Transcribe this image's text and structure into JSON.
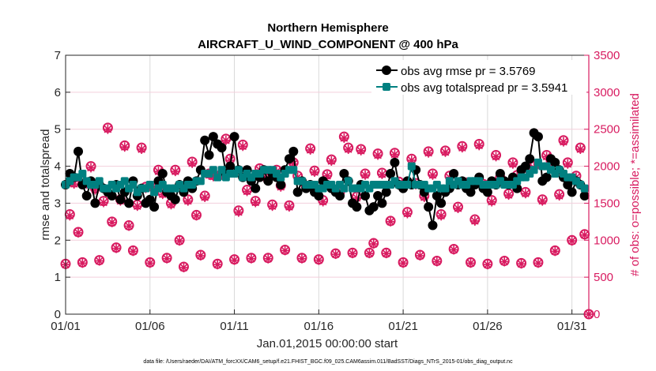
{
  "chart_data": {
    "type": "line",
    "title": [
      "Northern Hemisphere",
      "AIRCRAFT_U_WIND_COMPONENT @ 400 hPa"
    ],
    "xlabel": "Jan.01,2015 00:00:00 start",
    "ylabel_left": "rmse and totalspread",
    "ylabel_right": "# of obs: o=possible; *=assimilated",
    "x_tick_labels": [
      "01/01",
      "01/06",
      "01/11",
      "01/16",
      "01/21",
      "01/26",
      "01/31"
    ],
    "x_tick_days": [
      0,
      5,
      10,
      15,
      20,
      25,
      30
    ],
    "xlim_days": [
      0,
      31
    ],
    "ylim_left": [
      0,
      7
    ],
    "y_ticks_left": [
      "0",
      "1",
      "2",
      "3",
      "4",
      "5",
      "6",
      "7"
    ],
    "ylim_right": [
      0,
      3500
    ],
    "y_ticks_right": [
      "0",
      "500",
      "1000",
      "1500",
      "2000",
      "2500",
      "3000",
      "3500"
    ],
    "time_step_days": 0.25,
    "legend_position": "top-right",
    "colors": {
      "rmse": "#000000",
      "spread": "#008080",
      "obs": "#d81b60"
    },
    "series": [
      {
        "name": "obs avg rmse pr = 3.5769",
        "key": "rmse",
        "values": [
          3.5,
          3.8,
          3.7,
          4.4,
          3.5,
          3.2,
          3.6,
          3.0,
          3.5,
          3.4,
          3.3,
          3.2,
          3.5,
          3.1,
          3.3,
          3.0,
          3.6,
          3.2,
          3.4,
          3.0,
          3.1,
          2.9,
          3.6,
          3.8,
          3.3,
          3.2,
          3.1,
          3.5,
          3.3,
          3.6,
          3.4,
          3.6,
          3.9,
          4.7,
          4.3,
          4.8,
          4.6,
          4.5,
          3.8,
          4.0,
          4.8,
          3.9,
          3.7,
          3.9,
          3.6,
          3.4,
          3.7,
          3.9,
          3.6,
          3.8,
          3.7,
          3.5,
          3.9,
          4.2,
          4.4,
          3.3,
          3.6,
          3.4,
          3.5,
          3.3,
          3.2,
          3.6,
          3.5,
          3.4,
          3.3,
          3.2,
          3.8,
          3.6,
          3.0,
          2.9,
          3.5,
          3.2,
          2.8,
          2.9,
          3.2,
          3.0,
          3.3,
          3.8,
          4.1,
          3.5,
          3.4,
          3.6,
          3.5,
          3.9,
          3.5,
          3.3,
          2.9,
          2.4,
          3.2,
          3.0,
          3.3,
          3.4,
          3.8,
          3.5,
          3.6,
          3.4,
          3.3,
          3.5,
          3.7,
          3.4,
          3.3,
          3.6,
          3.5,
          3.8,
          3.6,
          3.5,
          3.7,
          3.4,
          3.9,
          4.0,
          4.2,
          4.9,
          4.8,
          3.6,
          3.7,
          4.2,
          4.1,
          3.9,
          3.7,
          3.5,
          3.3,
          3.6,
          3.5,
          3.2
        ]
      },
      {
        "name": "obs avg totalspread pr = 3.5941",
        "key": "spread",
        "values": [
          3.5,
          3.6,
          3.7,
          3.7,
          3.8,
          3.6,
          3.5,
          3.5,
          3.6,
          3.4,
          3.4,
          3.5,
          3.4,
          3.5,
          3.6,
          3.4,
          3.5,
          3.3,
          3.4,
          3.4,
          3.5,
          3.3,
          3.4,
          3.5,
          3.4,
          3.4,
          3.4,
          3.5,
          3.4,
          3.5,
          3.5,
          3.6,
          3.6,
          3.8,
          3.8,
          3.9,
          3.7,
          3.9,
          3.7,
          3.8,
          3.8,
          3.9,
          3.7,
          3.8,
          3.7,
          3.8,
          3.8,
          3.9,
          3.9,
          3.9,
          3.8,
          3.7,
          3.8,
          3.9,
          3.9,
          3.6,
          3.6,
          3.5,
          3.5,
          3.5,
          3.4,
          3.4,
          3.5,
          3.5,
          3.4,
          3.5,
          3.4,
          3.6,
          3.4,
          3.4,
          3.4,
          3.5,
          3.4,
          3.5,
          3.5,
          3.5,
          3.5,
          3.5,
          3.6,
          3.5,
          3.5,
          3.5,
          4.0,
          3.5,
          3.5,
          3.5,
          3.4,
          3.4,
          3.5,
          3.4,
          3.4,
          3.6,
          3.5,
          3.6,
          3.5,
          3.5,
          3.6,
          3.6,
          3.6,
          3.5,
          3.5,
          3.5,
          3.5,
          3.6,
          3.5,
          3.5,
          3.5,
          3.6,
          3.7,
          3.7,
          3.8,
          3.9,
          4.1,
          4.0,
          4.0,
          3.9,
          3.8,
          3.9,
          3.8,
          3.7,
          3.7,
          3.6,
          3.5,
          3.4
        ]
      },
      {
        "name": "obs possible",
        "key": "possible",
        "values": [
          680,
          1350,
          1780,
          1110,
          700,
          1780,
          2000,
          1700,
          730,
          1530,
          2520,
          1250,
          900,
          1550,
          2280,
          1200,
          860,
          1480,
          2250,
          1720,
          700,
          1700,
          1950,
          1640,
          760,
          1500,
          1950,
          1000,
          640,
          1550,
          2060,
          1340,
          800,
          1600,
          1900,
          1880,
          680,
          1900,
          2370,
          2100,
          740,
          1400,
          2290,
          1680,
          760,
          1530,
          1970,
          1870,
          760,
          1480,
          1950,
          1740,
          870,
          1470,
          2050,
          1870,
          760,
          1730,
          2240,
          1940,
          740,
          1540,
          1890,
          2090,
          820,
          1650,
          2400,
          2250,
          830,
          1590,
          2230,
          1900,
          830,
          960,
          2170,
          1910,
          830,
          1260,
          2180,
          1790,
          700,
          1380,
          2100,
          1770,
          800,
          1600,
          2200,
          1900,
          720,
          1350,
          2210,
          1870,
          880,
          1450,
          2270,
          1780,
          700,
          1280,
          2300,
          1760,
          680,
          1540,
          2150,
          1850,
          720,
          1630,
          2050,
          1880,
          690,
          1650,
          1950,
          2000,
          700,
          1550,
          2150,
          2080,
          860,
          1620,
          2350,
          2050,
          1000,
          1870,
          2250,
          1080,
          0
        ]
      },
      {
        "name": "obs assimilated",
        "key": "assimilated",
        "values": [
          670,
          1330,
          1760,
          1100,
          690,
          1760,
          1980,
          1680,
          720,
          1510,
          2500,
          1240,
          890,
          1530,
          2260,
          1190,
          850,
          1460,
          2230,
          1700,
          690,
          1680,
          1930,
          1620,
          750,
          1480,
          1930,
          990,
          630,
          1530,
          2040,
          1330,
          790,
          1580,
          1880,
          1860,
          670,
          1880,
          2350,
          2080,
          730,
          1380,
          2270,
          1660,
          750,
          1510,
          1950,
          1850,
          750,
          1460,
          1930,
          1720,
          860,
          1450,
          2030,
          1850,
          750,
          1710,
          2220,
          1920,
          730,
          1520,
          1870,
          2070,
          810,
          1630,
          2380,
          2230,
          820,
          1570,
          2210,
          1880,
          820,
          950,
          2150,
          1890,
          820,
          1250,
          2160,
          1770,
          690,
          1360,
          2080,
          1750,
          790,
          1580,
          2180,
          1880,
          710,
          1330,
          2190,
          1850,
          870,
          1430,
          2250,
          1760,
          690,
          1260,
          2280,
          1740,
          670,
          1520,
          2130,
          1830,
          710,
          1610,
          2030,
          1860,
          680,
          1630,
          1930,
          1980,
          690,
          1530,
          2130,
          2060,
          850,
          1600,
          2330,
          2030,
          990,
          1850,
          2230,
          1070,
          0
        ]
      }
    ],
    "legend": [
      "obs avg rmse pr = 3.5769",
      "obs avg totalspread pr = 3.5941"
    ],
    "footer": "data file: /Users/raeder/DAI/ATM_forcXX/CAM6_setup/f.e21.FHIST_BGC.f09_025.CAM6assim.011/BadSST/Diags_NTrS_2015-01/obs_diag_output.nc"
  }
}
